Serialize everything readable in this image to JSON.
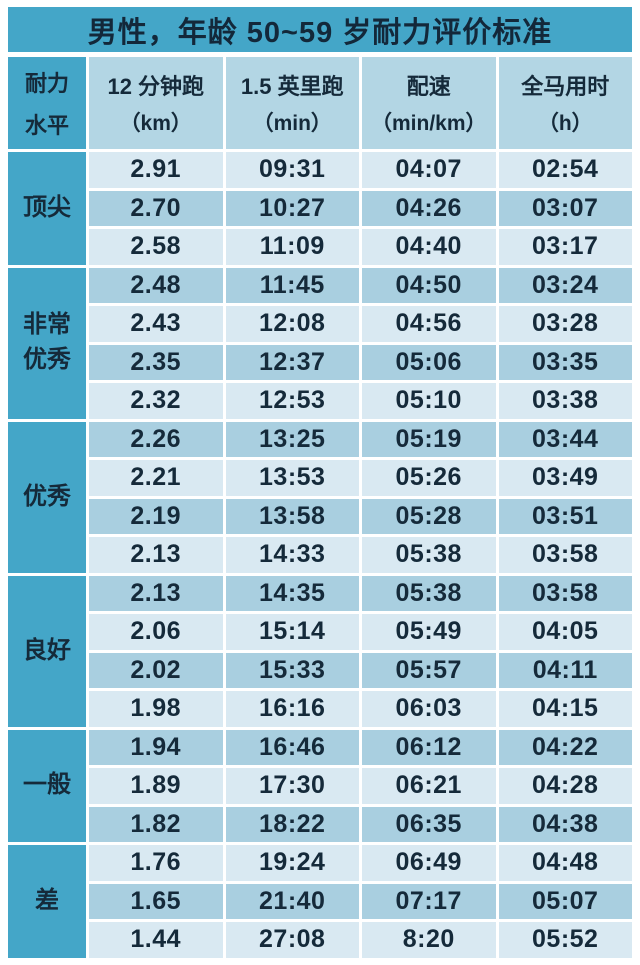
{
  "page_title": "男性，年龄 50~59 岁耐力评价标准",
  "colors": {
    "teal_accent": "#44a6c8",
    "header_bg": "#b3d6e4",
    "row_light": "#d9e9f2",
    "row_dark": "#a9cfe0",
    "text": "#152a3a",
    "background": "#ffffff"
  },
  "table": {
    "level_header_lines": [
      "耐力",
      "水平"
    ],
    "columns": [
      {
        "name": "12 分钟跑",
        "unit": "（km）"
      },
      {
        "name": "1.5 英里跑",
        "unit": "（min）"
      },
      {
        "name": "配速",
        "unit": "（min/km）"
      },
      {
        "name": "全马用时",
        "unit": "（h）"
      }
    ],
    "groups": [
      {
        "label": "顶尖",
        "rows": [
          [
            "2.91",
            "09:31",
            "04:07",
            "02:54"
          ],
          [
            "2.70",
            "10:27",
            "04:26",
            "03:07"
          ],
          [
            "2.58",
            "11:09",
            "04:40",
            "03:17"
          ]
        ]
      },
      {
        "label": "非常优秀",
        "rows": [
          [
            "2.48",
            "11:45",
            "04:50",
            "03:24"
          ],
          [
            "2.43",
            "12:08",
            "04:56",
            "03:28"
          ],
          [
            "2.35",
            "12:37",
            "05:06",
            "03:35"
          ],
          [
            "2.32",
            "12:53",
            "05:10",
            "03:38"
          ]
        ]
      },
      {
        "label": "优秀",
        "rows": [
          [
            "2.26",
            "13:25",
            "05:19",
            "03:44"
          ],
          [
            "2.21",
            "13:53",
            "05:26",
            "03:49"
          ],
          [
            "2.19",
            "13:58",
            "05:28",
            "03:51"
          ],
          [
            "2.13",
            "14:33",
            "05:38",
            "03:58"
          ]
        ]
      },
      {
        "label": "良好",
        "rows": [
          [
            "2.13",
            "14:35",
            "05:38",
            "03:58"
          ],
          [
            "2.06",
            "15:14",
            "05:49",
            "04:05"
          ],
          [
            "2.02",
            "15:33",
            "05:57",
            "04:11"
          ],
          [
            "1.98",
            "16:16",
            "06:03",
            "04:15"
          ]
        ]
      },
      {
        "label": "一般",
        "rows": [
          [
            "1.94",
            "16:46",
            "06:12",
            "04:22"
          ],
          [
            "1.89",
            "17:30",
            "06:21",
            "04:28"
          ],
          [
            "1.82",
            "18:22",
            "06:35",
            "04:38"
          ]
        ]
      },
      {
        "label": "差",
        "rows": [
          [
            "1.76",
            "19:24",
            "06:49",
            "04:48"
          ],
          [
            "1.65",
            "21:40",
            "07:17",
            "05:07"
          ],
          [
            "1.44",
            "27:08",
            "8:20",
            "05:52"
          ]
        ]
      }
    ]
  },
  "chart_data": {
    "type": "table",
    "title": "男性，年龄 50~59 岁耐力评价标准",
    "columns": [
      "耐力水平",
      "12 分钟跑（km）",
      "1.5 英里跑（min）",
      "配速（min/km）",
      "全马用时（h）"
    ],
    "rows": [
      [
        "顶尖",
        "2.91",
        "09:31",
        "04:07",
        "02:54"
      ],
      [
        "顶尖",
        "2.70",
        "10:27",
        "04:26",
        "03:07"
      ],
      [
        "顶尖",
        "2.58",
        "11:09",
        "04:40",
        "03:17"
      ],
      [
        "非常优秀",
        "2.48",
        "11:45",
        "04:50",
        "03:24"
      ],
      [
        "非常优秀",
        "2.43",
        "12:08",
        "04:56",
        "03:28"
      ],
      [
        "非常优秀",
        "2.35",
        "12:37",
        "05:06",
        "03:35"
      ],
      [
        "非常优秀",
        "2.32",
        "12:53",
        "05:10",
        "03:38"
      ],
      [
        "优秀",
        "2.26",
        "13:25",
        "05:19",
        "03:44"
      ],
      [
        "优秀",
        "2.21",
        "13:53",
        "05:26",
        "03:49"
      ],
      [
        "优秀",
        "2.19",
        "13:58",
        "05:28",
        "03:51"
      ],
      [
        "优秀",
        "2.13",
        "14:33",
        "05:38",
        "03:58"
      ],
      [
        "良好",
        "2.13",
        "14:35",
        "05:38",
        "03:58"
      ],
      [
        "良好",
        "2.06",
        "15:14",
        "05:49",
        "04:05"
      ],
      [
        "良好",
        "2.02",
        "15:33",
        "05:57",
        "04:11"
      ],
      [
        "良好",
        "1.98",
        "16:16",
        "06:03",
        "04:15"
      ],
      [
        "一般",
        "1.94",
        "16:46",
        "06:12",
        "04:22"
      ],
      [
        "一般",
        "1.89",
        "17:30",
        "06:21",
        "04:28"
      ],
      [
        "一般",
        "1.82",
        "18:22",
        "06:35",
        "04:38"
      ],
      [
        "差",
        "1.76",
        "19:24",
        "06:49",
        "04:48"
      ],
      [
        "差",
        "1.65",
        "21:40",
        "07:17",
        "05:07"
      ],
      [
        "差",
        "1.44",
        "27:08",
        "8:20",
        "05:52"
      ]
    ]
  }
}
